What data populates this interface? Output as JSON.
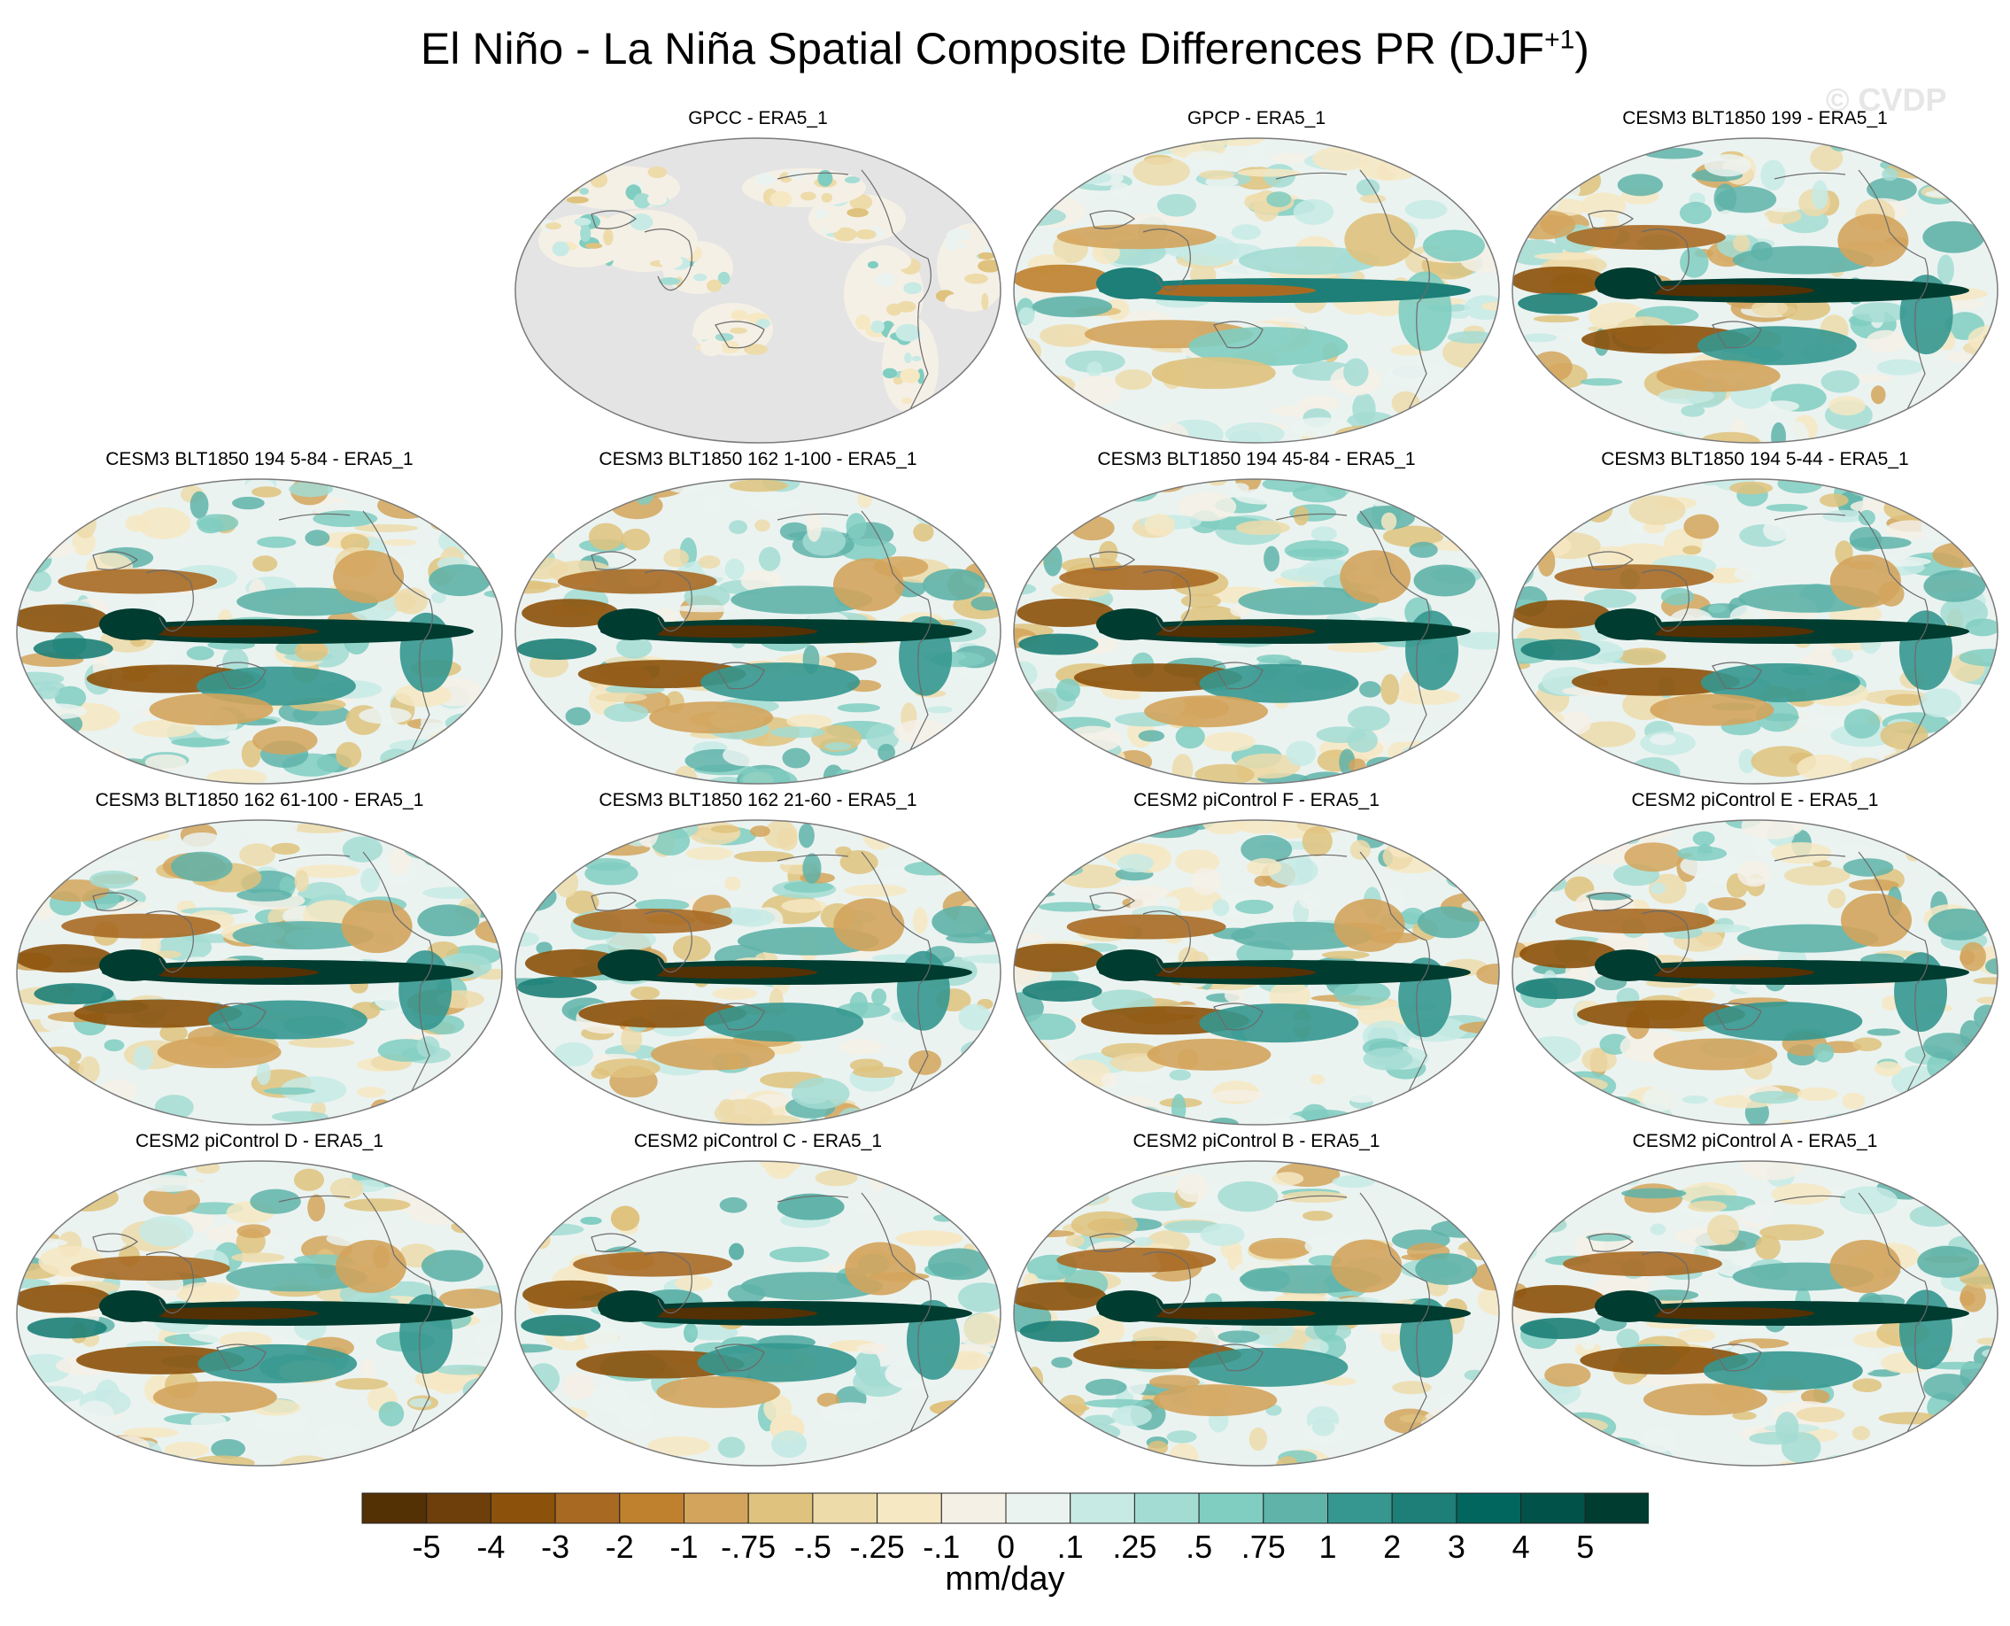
{
  "figure": {
    "title_main": "El Niño - La Niña Spatial Composite Differences PR (DJF",
    "title_sup": "+1",
    "title_close": ")",
    "watermark": "© CVDP"
  },
  "panels": [
    {
      "title": "GPCC - ERA5_1",
      "land_only": true,
      "amp": 0.55,
      "seed": 3
    },
    {
      "title": "GPCP - ERA5_1",
      "land_only": false,
      "amp": 0.7,
      "seed": 7
    },
    {
      "title": "CESM3 BLT1850 199 - ERA5_1",
      "land_only": false,
      "amp": 1.0,
      "seed": 11
    },
    {
      "title": "CESM3 BLT1850 194 5-84 - ERA5_1",
      "land_only": false,
      "amp": 1.0,
      "seed": 13
    },
    {
      "title": "CESM3 BLT1850 162 1-100 - ERA5_1",
      "land_only": false,
      "amp": 1.0,
      "seed": 17
    },
    {
      "title": "CESM3 BLT1850 194 45-84 - ERA5_1",
      "land_only": false,
      "amp": 1.0,
      "seed": 19
    },
    {
      "title": "CESM3 BLT1850 194 5-44 - ERA5_1",
      "land_only": false,
      "amp": 1.0,
      "seed": 23
    },
    {
      "title": "CESM3 BLT1850 162 61-100 - ERA5_1",
      "land_only": false,
      "amp": 1.0,
      "seed": 29
    },
    {
      "title": "CESM3 BLT1850 162 21-60 - ERA5_1",
      "land_only": false,
      "amp": 1.0,
      "seed": 31
    },
    {
      "title": "CESM2 piControl F - ERA5_1",
      "land_only": false,
      "amp": 1.0,
      "seed": 37
    },
    {
      "title": "CESM2 piControl E - ERA5_1",
      "land_only": false,
      "amp": 1.05,
      "seed": 41
    },
    {
      "title": "CESM2 piControl D - ERA5_1",
      "land_only": false,
      "amp": 1.0,
      "seed": 43
    },
    {
      "title": "CESM2 piControl C - ERA5_1",
      "land_only": false,
      "amp": 1.0,
      "seed": 47
    },
    {
      "title": "CESM2 piControl B - ERA5_1",
      "land_only": false,
      "amp": 1.0,
      "seed": 53
    },
    {
      "title": "CESM2 piControl A - ERA5_1",
      "land_only": false,
      "amp": 1.0,
      "seed": 59
    }
  ],
  "colorbar": {
    "units": "mm/day",
    "labels": [
      "-5",
      "-4",
      "-3",
      "-2",
      "-1",
      "-.75",
      "-.5",
      "-.25",
      "-.1",
      "0",
      ".1",
      ".25",
      ".5",
      ".75",
      "1",
      "2",
      "3",
      "4",
      "5"
    ],
    "colors": [
      "#543005",
      "#6e3f0b",
      "#8c510a",
      "#a86a23",
      "#bf812d",
      "#d3a45c",
      "#dfc27d",
      "#eddbaa",
      "#f6e8c3",
      "#f5f0e6",
      "#ebf3f1",
      "#c7eae5",
      "#a3dcd3",
      "#80cdc1",
      "#5fb3a9",
      "#35978f",
      "#1d7f77",
      "#01665e",
      "#015248",
      "#003c30"
    ],
    "land_color": "#e4e4e4"
  }
}
